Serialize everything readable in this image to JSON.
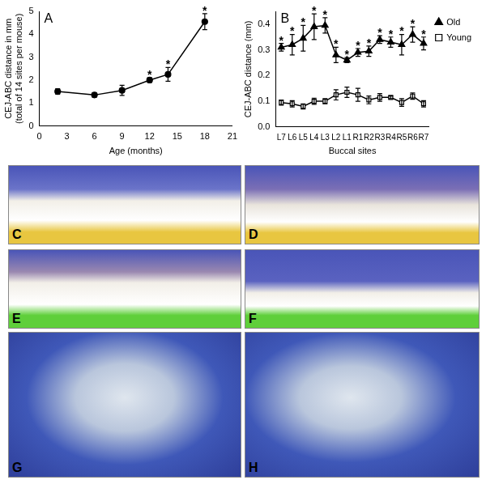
{
  "chart_data": [
    {
      "type": "line",
      "panel": "A",
      "x_label": "Age (months)",
      "y_label": [
        "CEJ-ABC distance in mm",
        "(total of 14 sites per mouse)"
      ],
      "x": [
        2,
        6,
        9,
        12,
        14,
        18
      ],
      "series": [
        {
          "name": "CEJ-ABC distance",
          "color": "#000000",
          "marker": "circle",
          "line_style": "solid",
          "values": [
            1.5,
            1.35,
            1.55,
            2.0,
            2.25,
            4.55
          ],
          "errors": [
            0.12,
            0.1,
            0.22,
            0.1,
            0.3,
            0.35
          ],
          "marks": [
            null,
            null,
            null,
            "*",
            "*",
            "*"
          ]
        }
      ],
      "xlim": [
        0,
        21
      ],
      "xticks": [
        0,
        3,
        6,
        9,
        12,
        15,
        18,
        21
      ],
      "ylim": [
        0,
        5
      ],
      "yticks": [
        0,
        1,
        2,
        3,
        4,
        5
      ],
      "grid": false
    },
    {
      "type": "line",
      "panel": "B",
      "x_label": "Buccal sites",
      "y_label": "CEJ-ABC distance (mm)",
      "categories": [
        "L7",
        "L6",
        "L5",
        "L4",
        "L3",
        "L2",
        "L1",
        "R1",
        "R2",
        "R3",
        "R4",
        "R5",
        "R6",
        "R7"
      ],
      "series": [
        {
          "name": "Old",
          "color": "#000000",
          "marker": "triangle",
          "line_style": "solid",
          "values": [
            0.31,
            0.32,
            0.345,
            0.39,
            0.395,
            0.28,
            0.26,
            0.29,
            0.295,
            0.34,
            0.33,
            0.32,
            0.36,
            0.325
          ],
          "errors": [
            0.015,
            0.04,
            0.05,
            0.05,
            0.03,
            0.03,
            0.01,
            0.015,
            0.02,
            0.015,
            0.02,
            0.04,
            0.03,
            0.025
          ],
          "marks": [
            "*",
            "*",
            "*",
            "*",
            "*",
            "*",
            "*",
            "*",
            "*",
            "*",
            "*",
            "*",
            "*",
            "*"
          ]
        },
        {
          "name": "Young",
          "color": "#000000",
          "marker": "square_open",
          "line_style": "solid",
          "values": [
            0.095,
            0.09,
            0.08,
            0.1,
            0.1,
            0.125,
            0.135,
            0.125,
            0.105,
            0.115,
            0.115,
            0.095,
            0.12,
            0.09
          ],
          "errors": [
            0.01,
            0.012,
            0.01,
            0.012,
            0.01,
            0.02,
            0.02,
            0.025,
            0.015,
            0.015,
            0.005,
            0.015,
            0.012,
            0.012
          ]
        }
      ],
      "ylim": [
        0,
        0.45
      ],
      "yticks": [
        {
          "value": 0,
          "label": "0.0"
        },
        {
          "value": 0.1,
          "label": "0.1"
        },
        {
          "value": 0.2,
          "label": "0.2"
        },
        {
          "value": 0.3,
          "label": "0.3"
        },
        {
          "value": 0.4,
          "label": "0.4"
        }
      ],
      "legend": "right",
      "grid": false
    }
  ],
  "photo_panels": [
    "C",
    "D",
    "E",
    "F",
    "G",
    "H"
  ]
}
